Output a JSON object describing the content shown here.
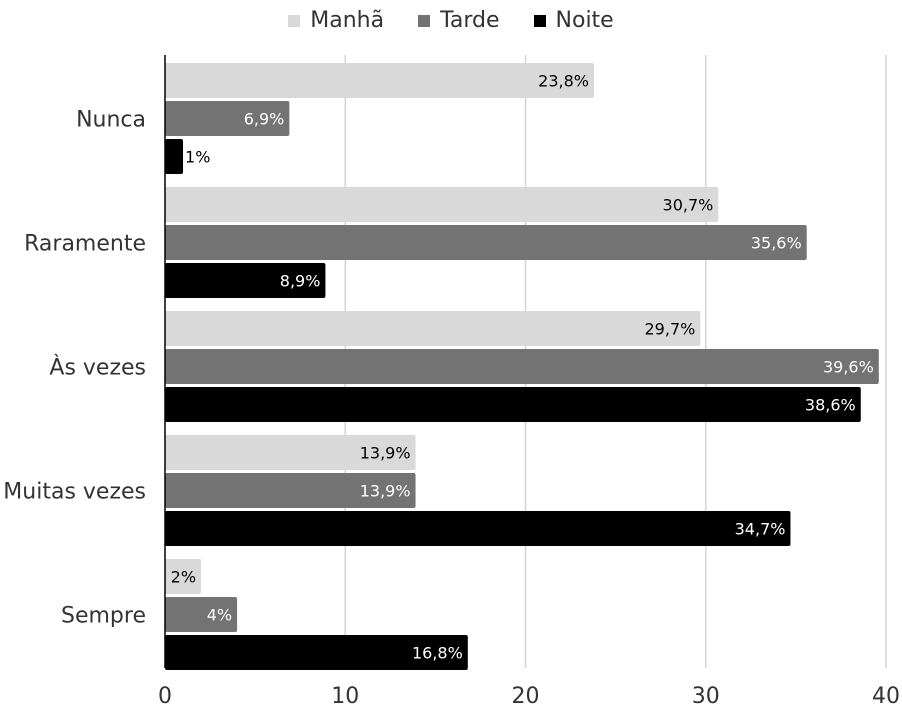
{
  "chart_data": {
    "type": "bar",
    "orientation": "horizontal",
    "categories": [
      "Nunca",
      "Raramente",
      "Às vezes",
      "Muitas vezes",
      "Sempre"
    ],
    "series": [
      {
        "name": "Manhã",
        "color": "#d9d9d9",
        "label_color": "#000000",
        "values": [
          23.8,
          30.7,
          29.7,
          13.9,
          2
        ],
        "labels": [
          "23,8%",
          "30,7%",
          "29,7%",
          "13,9%",
          "2%"
        ]
      },
      {
        "name": "Tarde",
        "color": "#737373",
        "label_color": "#ffffff",
        "values": [
          6.9,
          35.6,
          39.6,
          13.9,
          4
        ],
        "labels": [
          "6,9%",
          "35,6%",
          "39,6%",
          "13,9%",
          "4%"
        ]
      },
      {
        "name": "Noite",
        "color": "#000000",
        "label_color": "#ffffff",
        "values": [
          1,
          8.9,
          38.6,
          34.7,
          16.8
        ],
        "labels": [
          "1%",
          "8,9%",
          "38,6%",
          "34,7%",
          "16,8%"
        ]
      }
    ],
    "xlim": [
      0,
      40
    ],
    "xticks": [
      "0",
      "10",
      "20",
      "30",
      "40"
    ],
    "grid": true,
    "legend_position": "top"
  }
}
